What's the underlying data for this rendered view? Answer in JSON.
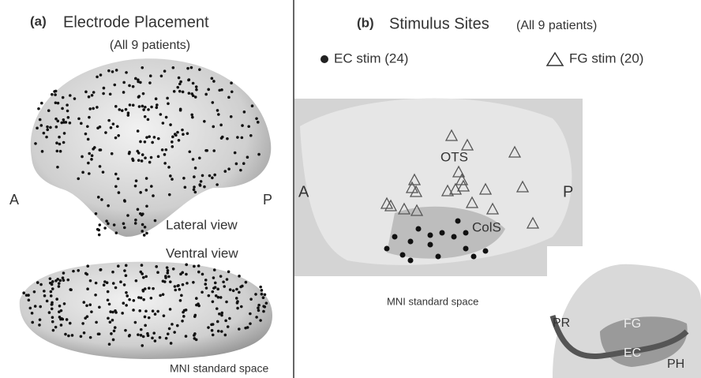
{
  "panel_a": {
    "label": "(a)",
    "title": "Electrode Placement",
    "subtitle": "(All 9 patients)",
    "anterior": "A",
    "posterior": "P",
    "lateral_view": "Lateral view",
    "ventral_view": "Ventral view",
    "space_note": "MNI standard space"
  },
  "panel_b": {
    "label": "(b)",
    "title": "Stimulus Sites",
    "subtitle": "(All 9 patients)",
    "legend": [
      "EC stim (24)",
      "FG stim (20)"
    ],
    "anterior": "A",
    "posterior": "P",
    "sulci": [
      "OTS",
      "ColS"
    ],
    "space_note": "MNI standard space",
    "inset_labels": [
      "PR",
      "FG",
      "EC",
      "PH"
    ]
  }
}
